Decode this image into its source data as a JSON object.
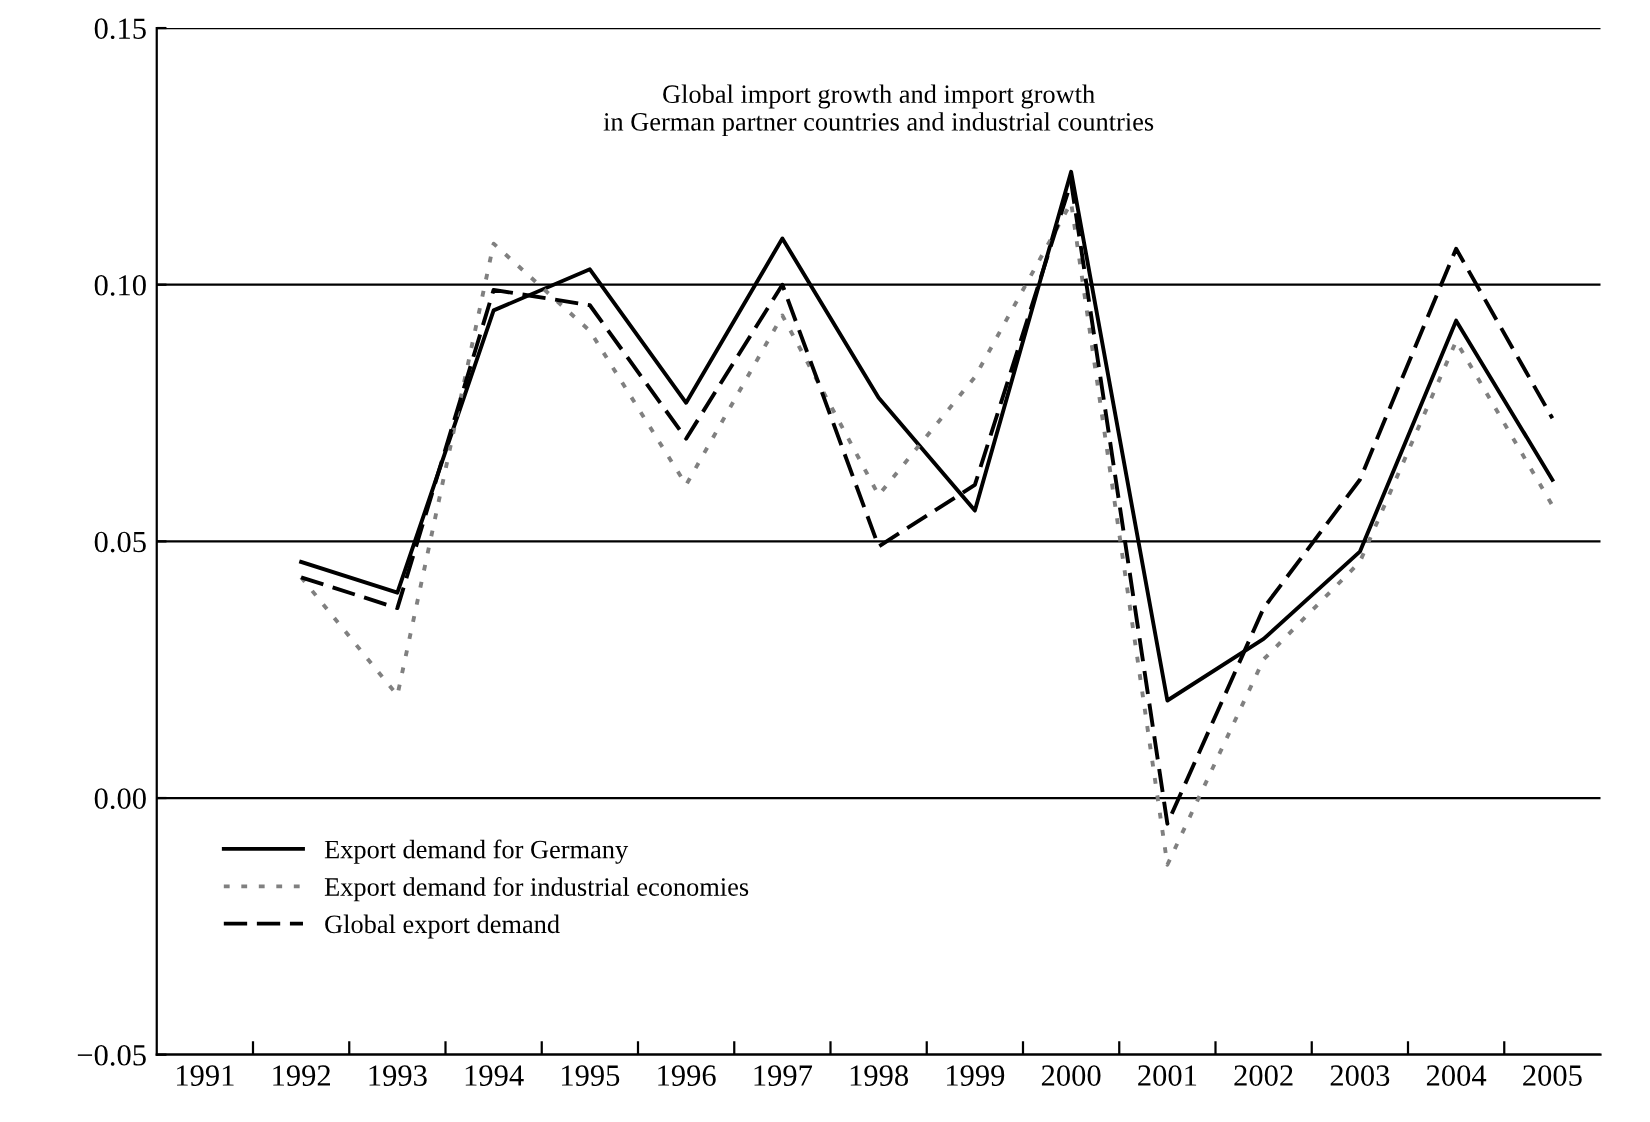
{
  "chart_data": {
    "type": "line",
    "title": "Global import growth and import growth\nin German partner countries and industrial countries",
    "categories": [
      "1991",
      "1992",
      "1993",
      "1994",
      "1995",
      "1996",
      "1997",
      "1998",
      "1999",
      "2000",
      "2001",
      "2002",
      "2003",
      "2004",
      "2005"
    ],
    "series": [
      {
        "name": "Export demand for Germany",
        "color": "#000000",
        "line_style": "solid",
        "values": [
          null,
          0.046,
          0.04,
          0.095,
          0.103,
          0.077,
          0.109,
          0.078,
          0.056,
          0.122,
          0.019,
          0.031,
          0.048,
          0.093,
          0.062
        ]
      },
      {
        "name": "Export demand for industrial economies",
        "color": "#808080",
        "line_style": "dotted",
        "values": [
          null,
          0.043,
          0.02,
          0.108,
          0.091,
          0.061,
          0.094,
          0.059,
          0.082,
          0.116,
          -0.013,
          0.027,
          0.046,
          0.089,
          0.057
        ]
      },
      {
        "name": "Global export demand",
        "color": "#000000",
        "line_style": "dashed",
        "values": [
          null,
          0.043,
          0.037,
          0.099,
          0.096,
          0.07,
          0.1,
          0.049,
          0.061,
          0.12,
          -0.005,
          0.037,
          0.062,
          0.107,
          0.074
        ]
      }
    ],
    "ylim": [
      -0.05,
      0.15
    ],
    "yticks": [
      {
        "value": -0.05,
        "label": "−0.05"
      },
      {
        "value": 0.0,
        "label": "0.00"
      },
      {
        "value": 0.05,
        "label": "0.05"
      },
      {
        "value": 0.1,
        "label": "0.10"
      },
      {
        "value": 0.15,
        "label": "0.15"
      }
    ],
    "grid": "y",
    "legend": "bottom left",
    "marker": "none"
  }
}
